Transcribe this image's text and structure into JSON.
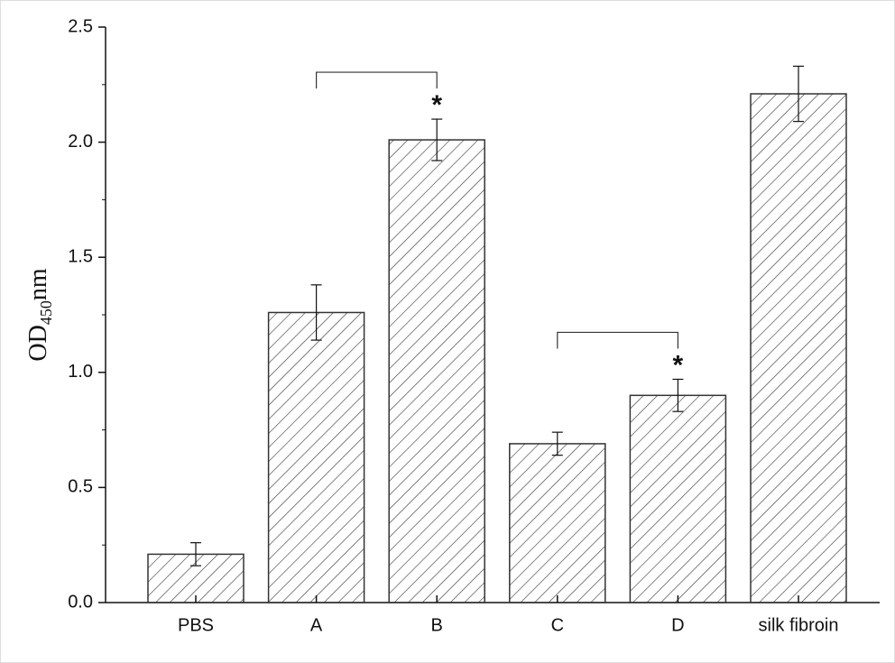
{
  "chart_data": {
    "type": "bar",
    "y_label": {
      "main": "OD",
      "subscript": "450",
      "unit": "nm"
    },
    "categories": [
      "PBS",
      "A",
      "B",
      "C",
      "D",
      "silk fibroin"
    ],
    "values": [
      0.21,
      1.26,
      2.01,
      0.69,
      0.9,
      2.21
    ],
    "errors": [
      0.05,
      0.12,
      0.09,
      0.05,
      0.07,
      0.12
    ],
    "color": "#333333",
    "ylim": [
      0,
      2.5
    ],
    "yticks": [
      {
        "value": 0,
        "label": "0.0"
      },
      0.5,
      {
        "value": 1,
        "label": "1.0"
      },
      1.5,
      {
        "value": 2,
        "label": "2.0"
      },
      2.5
    ],
    "significance": [
      {
        "from": 1,
        "to": 2,
        "label": "*"
      },
      {
        "from": 3,
        "to": 4,
        "label": "*"
      }
    ]
  }
}
